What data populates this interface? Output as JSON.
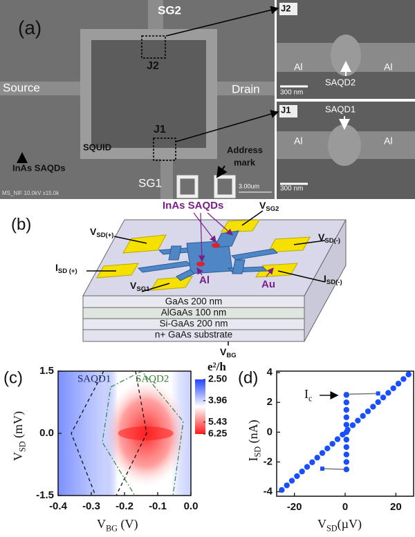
{
  "panel_a": {
    "label": "(a)",
    "sg2": "SG2",
    "j2": "J2",
    "source": "Source",
    "drain": "Drain",
    "j1": "J1",
    "squid": "SQUID",
    "inas": "InAs SAQDs",
    "address": [
      "Address",
      "mark"
    ],
    "sg1": "SG1",
    "info": "MS_NIF 10.0kV x15.0k",
    "scale": "3.00um",
    "inset_j2": {
      "tag": "J2",
      "al_left": "Al",
      "al_right": "Al",
      "dot": "SAQD2",
      "scale": "300 nm"
    },
    "inset_j1": {
      "tag": "J1",
      "al_left": "Al",
      "al_right": "Al",
      "dot": "SAQD1",
      "scale": "300 nm"
    }
  },
  "panel_b": {
    "label": "(b)",
    "inas": "InAs SAQDs",
    "vsd_plus": {
      "main": "V",
      "sub": "SD(+)"
    },
    "vsg2": {
      "main": "V",
      "sub": "SG2"
    },
    "vsd_minus": {
      "main": "V",
      "sub": "SD(-)"
    },
    "isd_plus": {
      "main": "I",
      "sub": "SD (+)"
    },
    "isd_minus": {
      "main": "I",
      "sub": "SD(-)"
    },
    "vsg1": {
      "main": "V",
      "sub": "SG1"
    },
    "al": "Al",
    "au": "Au",
    "layers": [
      "GaAs  200 nm",
      "AlGaAs 100 nm",
      "Si-GaAs 200 nm",
      "n+ GaAs substrate"
    ],
    "vbg": {
      "main": "V",
      "sub": "BG"
    }
  },
  "chart_data": [
    {
      "type": "heatmap",
      "panel_label": "(c)",
      "xlabel": {
        "main": "V",
        "sub": "BG",
        "unit": " (V)"
      },
      "ylabel": {
        "main": "V",
        "sub": "SD",
        "unit": " (mV)"
      },
      "xlim": [
        -0.4,
        0.0
      ],
      "xticks": [
        -0.4,
        -0.3,
        -0.2,
        -0.1,
        {
          "value": 0,
          "label": "0.0"
        }
      ],
      "ylim": [
        -1.5,
        1.5
      ],
      "yticks": [
        -1.5,
        {
          "value": 0,
          "label": "0.0"
        },
        1.5
      ],
      "annotations": [
        "SAQD1",
        "SAQD2"
      ],
      "colorbar": {
        "title": "e²/h",
        "clim": [
          2.5,
          6.25
        ],
        "ticks": [
          {
            "value": 2.5,
            "label": "2.50"
          },
          3.96,
          5.43,
          6.25
        ],
        "colors": [
          "#2244ff",
          "#ffffff",
          "#ff1a1a"
        ]
      }
    },
    {
      "type": "scatter",
      "panel_label": "(d)",
      "xlabel": {
        "main": "V",
        "sub": "SD",
        "unit": "(µV)"
      },
      "ylabel": {
        "main": "I",
        "sub": "SD",
        "unit": " (nA)"
      },
      "xlim": [
        -27,
        27
      ],
      "xticks": [
        -20,
        0,
        20
      ],
      "ylim": [
        -4.3,
        4.1
      ],
      "yticks": [
        -4,
        -2,
        0,
        2,
        4
      ],
      "annotation": {
        "main": "I",
        "sub": "c"
      },
      "series": [
        {
          "color": "#1a4fff",
          "x": [
            -25,
            -23,
            -21,
            -19,
            -17,
            -15,
            -13,
            -11,
            -9,
            -7,
            -5,
            -3,
            -1,
            0.5,
            0.5,
            0.5,
            0.5,
            0.5,
            0.5,
            0.5,
            0.5,
            0.5,
            0.5,
            0.5,
            1,
            3,
            5,
            7,
            9,
            11,
            13,
            15,
            17,
            19,
            21,
            23,
            25
          ],
          "values": [
            -3.88,
            -3.57,
            -3.26,
            -2.95,
            -2.64,
            -2.33,
            -2.02,
            -1.71,
            -1.4,
            -1.09,
            -0.78,
            -0.47,
            -0.16,
            -2.5,
            -2,
            -1.5,
            -1,
            -0.5,
            0,
            0.5,
            1,
            1.5,
            2,
            2.5,
            0.16,
            0.47,
            0.78,
            1.09,
            1.4,
            1.71,
            2.02,
            2.33,
            2.64,
            2.95,
            3.26,
            3.57,
            3.88
          ]
        },
        {
          "color": "#777777",
          "marker_color": "#1a4fff",
          "style": "line",
          "x": [
            0.5,
            13
          ],
          "values": [
            2.55,
            2.6
          ]
        },
        {
          "color": "#777777",
          "marker_color": "#1a4fff",
          "style": "line",
          "x": [
            -9,
            0.5
          ],
          "values": [
            -2.45,
            -2.5
          ]
        }
      ]
    }
  ]
}
